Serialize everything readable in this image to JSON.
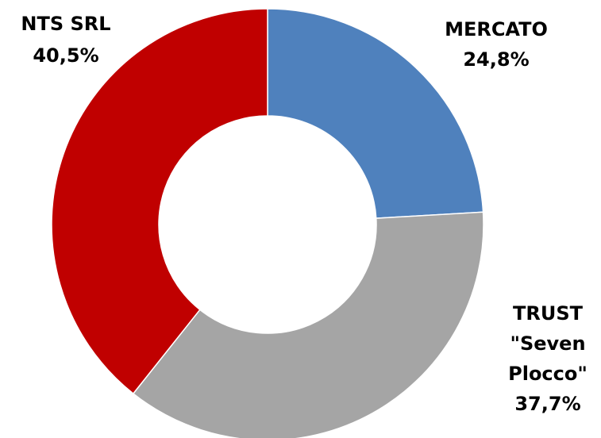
{
  "chart_data": {
    "type": "donut",
    "categories": [
      "MERCATO",
      "TRUST \"Seven Plocco\"",
      "NTS SRL"
    ],
    "values": [
      24.8,
      37.7,
      40.5
    ],
    "value_labels": [
      "24,8%",
      "37,7%",
      "40,5%"
    ],
    "colors": [
      "#4f81bd",
      "#a5a5a5",
      "#c00000"
    ]
  }
}
